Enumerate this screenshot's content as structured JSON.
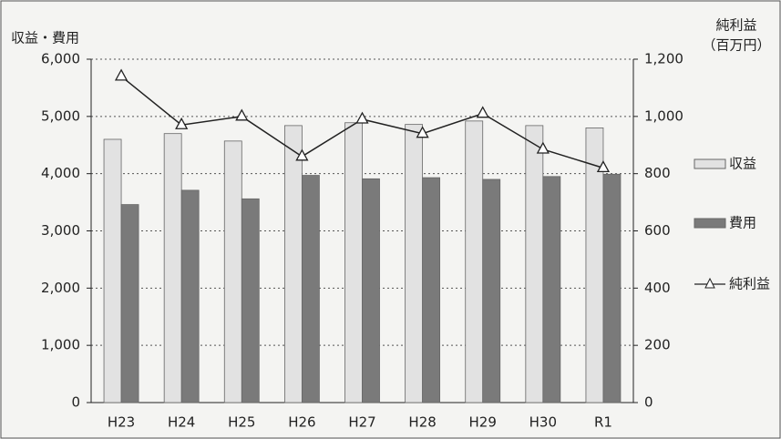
{
  "chart_data": {
    "type": "bar_line",
    "y_title": "収益・費用",
    "y2_title": "純利益",
    "y2_unit": "（百万円）",
    "categories": [
      "H23",
      "H24",
      "H25",
      "H26",
      "H27",
      "H28",
      "H29",
      "H30",
      "R1"
    ],
    "series": [
      {
        "name": "収益",
        "type": "bar",
        "color": "#e2e2e2",
        "values": [
          4600,
          4700,
          4570,
          4840,
          4890,
          4860,
          4920,
          4840,
          4800
        ]
      },
      {
        "name": "費用",
        "type": "bar",
        "color": "#7a7a7a",
        "values": [
          3460,
          3710,
          3560,
          3970,
          3910,
          3930,
          3900,
          3950,
          3990
        ]
      },
      {
        "name": "純利益",
        "type": "line",
        "axis": "y2",
        "color": "#222222",
        "values": [
          1140,
          970,
          1000,
          860,
          990,
          940,
          1010,
          885,
          820
        ]
      }
    ],
    "ylim": [
      0,
      6000
    ],
    "yticks": [
      0,
      {
        "value": 1000,
        "label": "1,000"
      },
      {
        "value": 2000,
        "label": "2,000"
      },
      {
        "value": 3000,
        "label": "3,000"
      },
      {
        "value": 4000,
        "label": "4,000"
      },
      {
        "value": 5000,
        "label": "5,000"
      },
      {
        "value": 6000,
        "label": "6,000"
      }
    ],
    "y2lim": [
      0,
      1200
    ],
    "y2ticks": [
      0,
      200,
      400,
      600,
      800,
      {
        "value": 1000,
        "label": "1,000"
      },
      {
        "value": 1200,
        "label": "1,200"
      }
    ],
    "grid": true
  }
}
